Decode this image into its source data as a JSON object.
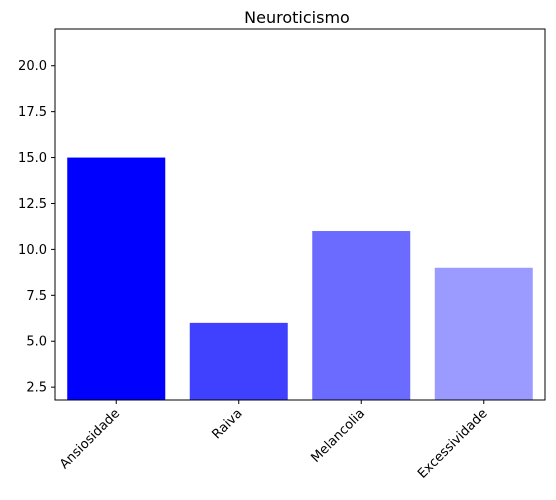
{
  "chart_data": {
    "type": "bar",
    "title": "Neuroticismo",
    "xlabel": "",
    "ylabel": "",
    "categories": [
      "Ansiosidade",
      "Raiva",
      "Melancolia",
      "Excessividade"
    ],
    "values": [
      15,
      6,
      11,
      9
    ],
    "bar_colors": [
      "#0000ff",
      "#4040ff",
      "#6b6bff",
      "#9a9aff"
    ],
    "ylim": [
      1.8,
      22
    ],
    "yticks": [
      2.5,
      5.0,
      7.5,
      10.0,
      12.5,
      15.0,
      17.5,
      20.0
    ],
    "ytick_labels": [
      "2.5",
      "5.0",
      "7.5",
      "10.0",
      "12.5",
      "15.0",
      "17.5",
      "20.0"
    ],
    "grid": false,
    "legend": "none"
  }
}
